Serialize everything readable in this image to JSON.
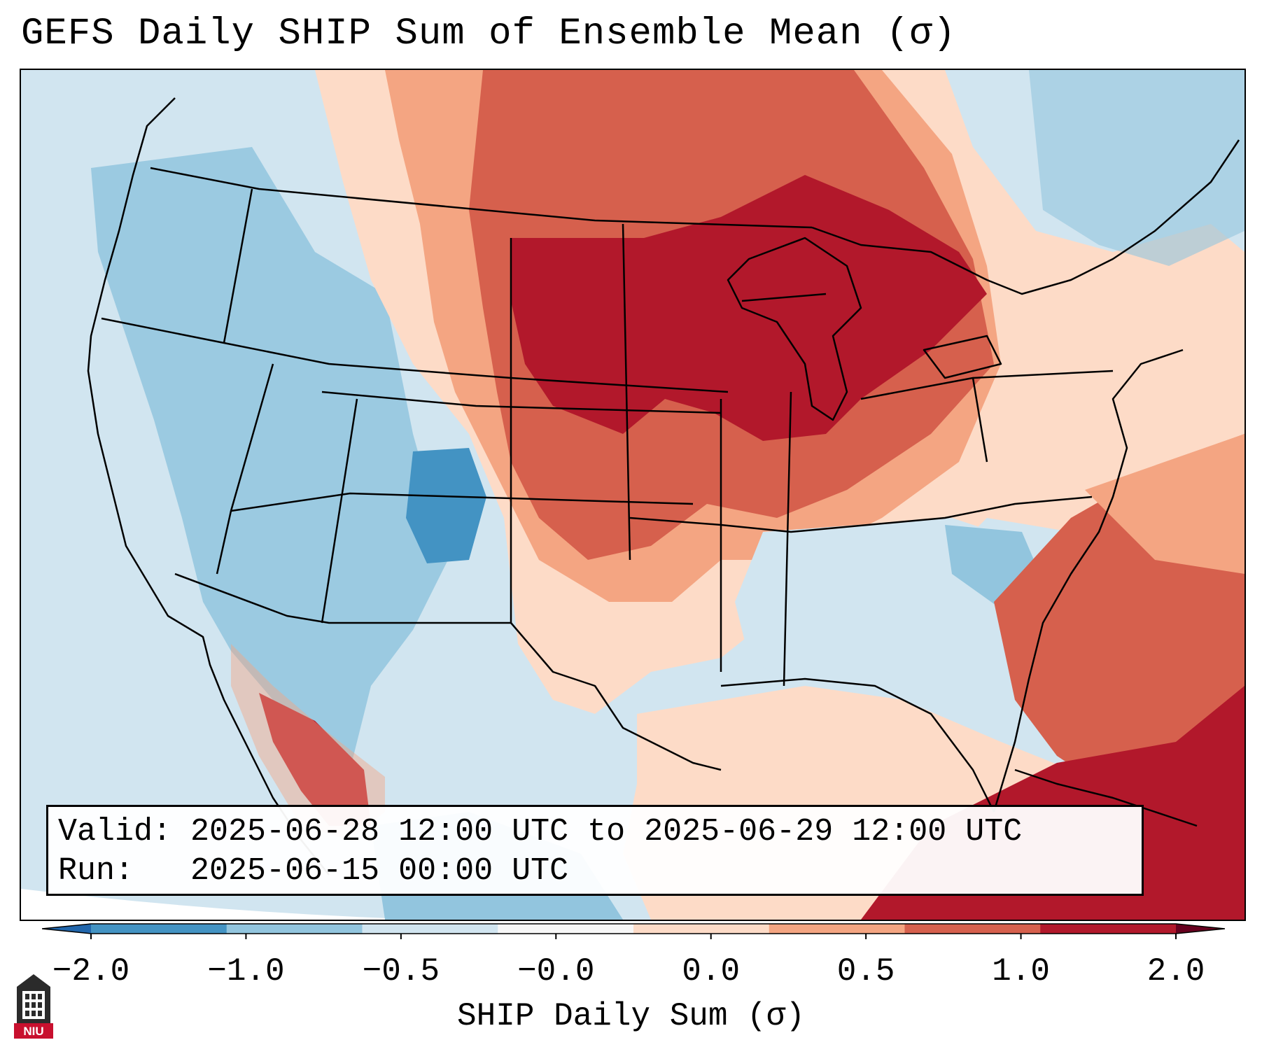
{
  "title": "GEFS Daily SHIP Sum of Ensemble Mean (σ)",
  "info": {
    "valid_label": "Valid:",
    "valid_value": "2025-06-28 12:00 UTC to 2025-06-29 12:00 UTC",
    "run_label": "Run:",
    "run_value": "2025-06-15 00:00 UTC"
  },
  "colorbar": {
    "label": "SHIP Daily Sum (σ)",
    "ticks": [
      "−2.0",
      "−1.0",
      "−0.5",
      "−0.0",
      "0.0",
      "0.5",
      "1.0",
      "2.0"
    ],
    "colors": {
      "below": "#2166ac",
      "bins": [
        "#4393c3",
        "#92c5de",
        "#d1e5f0",
        "#f7f7f7",
        "#fddbc7",
        "#f4a582",
        "#d6604d",
        "#b2182b"
      ],
      "above": "#67001f"
    }
  },
  "logo": {
    "text": "NIU"
  },
  "map_regions": [
    {
      "name": "pacific-northwest",
      "category": "light-blue",
      "color": "#d1e5f0"
    },
    {
      "name": "great-basin",
      "category": "mid-blue",
      "color": "#92c5de"
    },
    {
      "name": "colorado-rockies",
      "category": "dark-blue",
      "color": "#4393c3"
    },
    {
      "name": "northern-plains",
      "category": "red",
      "color": "#d6604d"
    },
    {
      "name": "upper-midwest-great-lakes",
      "category": "dark-red",
      "color": "#b2182b"
    },
    {
      "name": "southern-plains",
      "category": "peach",
      "color": "#fddbc7"
    },
    {
      "name": "southeast",
      "category": "light-blue",
      "color": "#d1e5f0"
    },
    {
      "name": "atlantic-offshore",
      "category": "red",
      "color": "#d6604d"
    },
    {
      "name": "gulf-of-mexico",
      "category": "peach",
      "color": "#fddbc7"
    },
    {
      "name": "caribbean",
      "category": "dark-red",
      "color": "#b2182b"
    },
    {
      "name": "northwest-mexico",
      "category": "dark-red",
      "color": "#b2182b"
    }
  ]
}
